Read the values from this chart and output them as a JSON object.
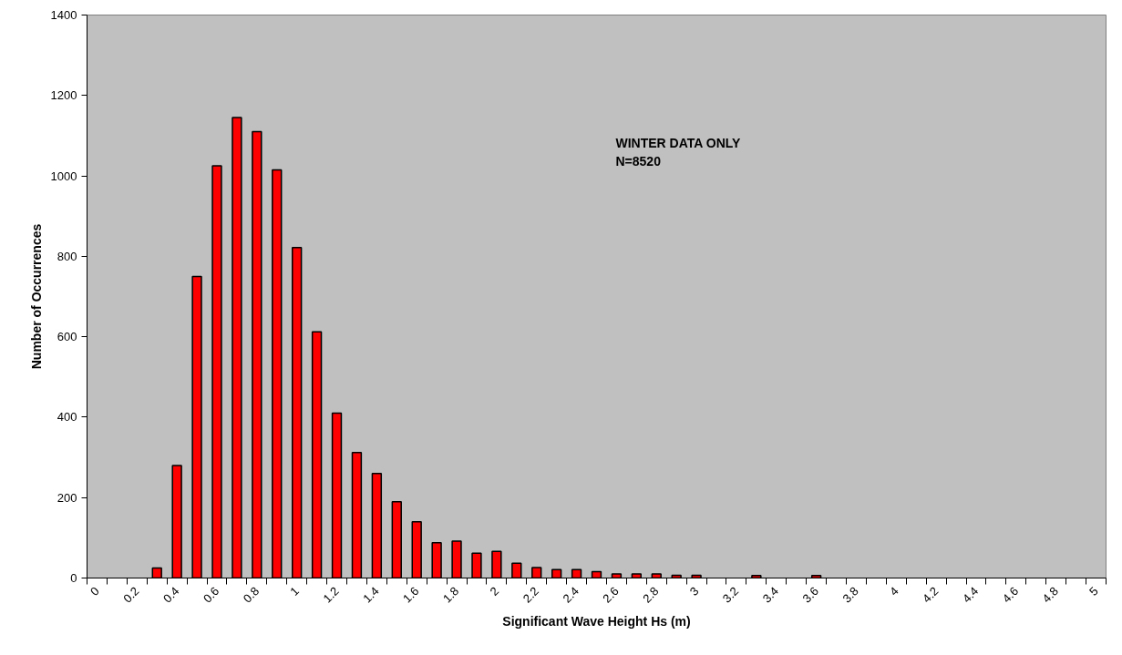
{
  "chart_data": {
    "type": "bar",
    "xlabel": "Significant Wave Height Hs (m)",
    "ylabel": "Number of Occurrences",
    "annotations": [
      "WINTER DATA ONLY",
      "N=8520"
    ],
    "categories": [
      "0",
      null,
      "0.2",
      null,
      "0.4",
      null,
      "0.6",
      null,
      "0.8",
      null,
      "1",
      null,
      "1.2",
      null,
      "1.4",
      null,
      "1.6",
      null,
      "1.8",
      null,
      "2",
      null,
      "2.2",
      null,
      "2.4",
      null,
      "2.6",
      null,
      "2.8",
      null,
      "3",
      null,
      "3.2",
      null,
      "3.4",
      null,
      "3.6",
      null,
      "3.8",
      null,
      "4",
      null,
      "4.2",
      null,
      "4.4",
      null,
      "4.6",
      null,
      "4.8",
      null,
      "5"
    ],
    "values": [
      null,
      null,
      null,
      25,
      280,
      750,
      1025,
      1145,
      1110,
      1015,
      822,
      612,
      410,
      312,
      260,
      190,
      140,
      88,
      92,
      62,
      66,
      37,
      26,
      21,
      21,
      16,
      10,
      10,
      10,
      7,
      7,
      null,
      null,
      6,
      null,
      null,
      6,
      null,
      null,
      null,
      null,
      null,
      null,
      null,
      null,
      null,
      null,
      null,
      null,
      null,
      null
    ],
    "color": "#ff0000",
    "ylim": [
      0,
      1400
    ],
    "yticks": [
      0,
      200,
      400,
      600,
      800,
      1000,
      1200,
      1400
    ],
    "grid": false
  }
}
